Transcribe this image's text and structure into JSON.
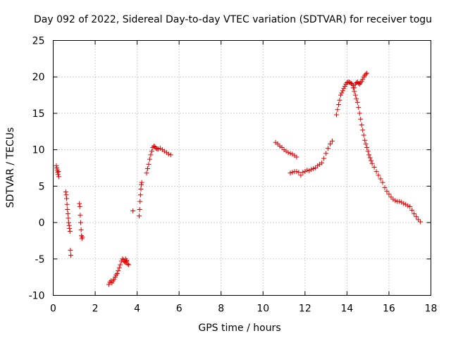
{
  "chart_data": {
    "type": "scatter",
    "title": "Day 092 of 2022, Sidereal Day-to-day VTEC variation (SDTVAR) for receiver togu",
    "xlabel": "GPS time / hours",
    "ylabel": "SDTVAR / TECUs",
    "xlim": [
      0,
      18
    ],
    "ylim": [
      -10,
      25
    ],
    "xticks": [
      0,
      2,
      4,
      6,
      8,
      10,
      12,
      14,
      16,
      18
    ],
    "yticks": [
      -10,
      -5,
      0,
      5,
      10,
      15,
      20,
      25
    ],
    "grid": true,
    "marker": "+",
    "color": "#e00000",
    "series": [
      {
        "name": "SDTVAR",
        "x": [
          0.15,
          0.17,
          0.19,
          0.21,
          0.23,
          0.25,
          0.27,
          0.6,
          0.62,
          0.64,
          0.66,
          0.68,
          0.7,
          0.72,
          0.74,
          0.76,
          0.78,
          0.8,
          0.82,
          0.84,
          1.25,
          1.27,
          1.29,
          1.31,
          1.33,
          1.35,
          1.37,
          1.39,
          2.65,
          2.7,
          2.75,
          2.8,
          2.85,
          2.9,
          2.95,
          3.0,
          3.05,
          3.1,
          3.15,
          3.2,
          3.25,
          3.3,
          3.35,
          3.4,
          3.45,
          3.5,
          3.55,
          3.6,
          3.45,
          3.5,
          3.8,
          4.1,
          4.12,
          4.14,
          4.16,
          4.18,
          4.2,
          4.22,
          4.45,
          4.5,
          4.55,
          4.6,
          4.65,
          4.7,
          4.75,
          4.8,
          4.85,
          4.9,
          4.95,
          5.0,
          5.1,
          5.2,
          5.3,
          5.4,
          5.5,
          5.6,
          10.6,
          10.7,
          10.8,
          10.9,
          11.0,
          11.1,
          11.2,
          11.3,
          11.4,
          11.5,
          11.6,
          11.3,
          11.4,
          11.5,
          11.6,
          11.7,
          11.8,
          11.9,
          12.0,
          12.1,
          12.2,
          12.3,
          12.4,
          12.5,
          12.6,
          12.7,
          12.8,
          12.9,
          13.0,
          13.1,
          13.2,
          13.3,
          13.5,
          13.55,
          13.6,
          13.65,
          13.7,
          13.75,
          13.8,
          13.85,
          13.9,
          13.95,
          14.0,
          14.05,
          14.1,
          14.15,
          14.2,
          14.25,
          14.3,
          14.35,
          14.4,
          14.45,
          14.5,
          14.55,
          14.6,
          14.65,
          14.7,
          14.75,
          14.8,
          14.85,
          14.9,
          14.95,
          14.3,
          14.35,
          14.4,
          14.45,
          14.5,
          14.55,
          14.6,
          14.65,
          14.7,
          14.75,
          14.8,
          14.85,
          14.9,
          14.95,
          15.0,
          15.05,
          15.1,
          15.15,
          15.2,
          15.3,
          15.4,
          15.5,
          15.6,
          15.7,
          15.8,
          15.9,
          16.0,
          16.1,
          16.2,
          16.3,
          16.4,
          16.5,
          16.6,
          16.7,
          16.8,
          16.9,
          17.0,
          17.1,
          17.2,
          17.3,
          17.4,
          17.5
        ],
        "y": [
          7.8,
          7.5,
          7.2,
          6.9,
          6.6,
          7.0,
          6.3,
          4.2,
          3.8,
          3.3,
          2.5,
          1.8,
          1.2,
          0.6,
          0.0,
          -0.4,
          -0.8,
          -1.2,
          -3.8,
          -4.5,
          2.6,
          2.2,
          1.0,
          0.0,
          -1.0,
          -1.8,
          -2.2,
          -2.0,
          -8.5,
          -8.2,
          -8.0,
          -8.3,
          -8.0,
          -7.8,
          -7.5,
          -7.2,
          -7.0,
          -6.6,
          -6.2,
          -5.8,
          -5.3,
          -5.0,
          -5.1,
          -5.4,
          -5.0,
          -5.3,
          -5.7,
          -5.8,
          -5.5,
          -5.2,
          1.6,
          0.9,
          1.8,
          2.9,
          3.8,
          4.6,
          5.2,
          5.5,
          6.8,
          7.4,
          8.0,
          8.7,
          9.3,
          9.8,
          10.3,
          10.5,
          10.4,
          10.2,
          10.1,
          10.1,
          10.2,
          10.0,
          9.8,
          9.6,
          9.4,
          9.3,
          11.0,
          10.8,
          10.5,
          10.3,
          10.0,
          9.8,
          9.6,
          9.5,
          9.4,
          9.2,
          9.0,
          6.8,
          6.9,
          7.0,
          7.0,
          6.9,
          6.5,
          6.9,
          7.0,
          7.2,
          7.1,
          7.3,
          7.4,
          7.5,
          7.8,
          8.0,
          8.2,
          8.8,
          9.5,
          10.2,
          10.8,
          11.2,
          14.8,
          15.5,
          16.2,
          16.8,
          17.5,
          17.8,
          18.1,
          18.4,
          18.7,
          19.0,
          19.2,
          19.3,
          19.3,
          19.2,
          19.1,
          19.0,
          18.8,
          18.5,
          19.0,
          19.2,
          19.3,
          19.1,
          19.0,
          19.2,
          19.4,
          19.7,
          20.0,
          20.2,
          20.4,
          20.5,
          18.5,
          18.0,
          17.5,
          17.0,
          16.5,
          15.8,
          15.0,
          14.2,
          13.4,
          12.7,
          12.0,
          11.3,
          10.8,
          10.3,
          9.8,
          9.3,
          8.9,
          8.5,
          8.1,
          7.6,
          7.0,
          6.5,
          6.0,
          5.5,
          4.8,
          4.3,
          3.9,
          3.5,
          3.2,
          3.0,
          2.9,
          2.9,
          2.8,
          2.6,
          2.5,
          2.3,
          2.2,
          1.7,
          1.2,
          0.8,
          0.4,
          0.1
        ]
      }
    ]
  }
}
